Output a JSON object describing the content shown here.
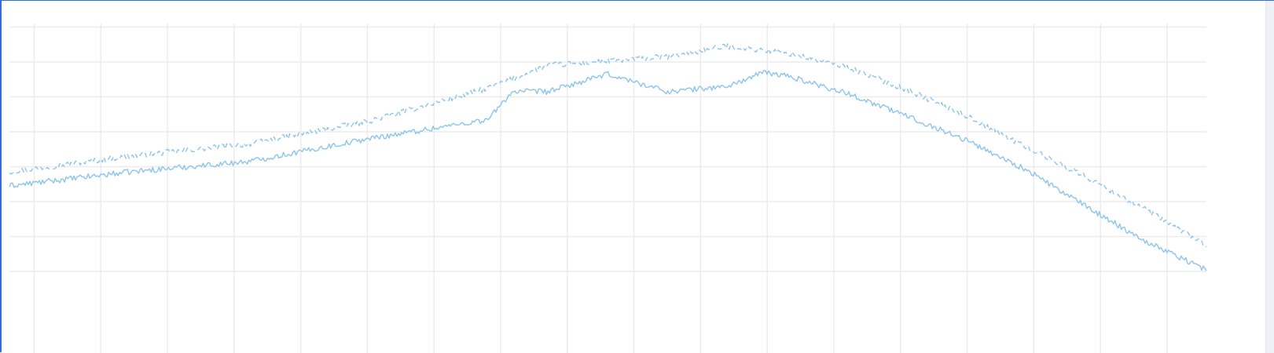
{
  "colors": {
    "series": "#8cc4ec",
    "grid": "#ececec",
    "frame": "#2f6fd6",
    "background": "#ffffff"
  },
  "chart_data": {
    "type": "line",
    "title": "",
    "xlabel": "",
    "ylabel": "",
    "grid": true,
    "legend": "none",
    "x_range": [
      0,
      100
    ],
    "y_range": [
      0,
      8
    ],
    "x_gridlines": [
      2.07,
      7.63,
      13.2,
      18.77,
      24.34,
      29.9,
      35.47,
      41.04,
      46.61,
      52.17,
      57.74,
      63.31,
      68.88,
      74.44,
      80.01,
      85.58,
      91.15,
      96.71
    ],
    "y_gridlines": [
      0.9,
      1.9,
      2.9,
      3.9,
      4.9,
      5.9,
      6.9,
      7.9
    ],
    "series": [
      {
        "style": "dashed",
        "points": [
          [
            0,
            3.75
          ],
          [
            10,
            4.2
          ],
          [
            20,
            4.55
          ],
          [
            30,
            5.2
          ],
          [
            40,
            6.15
          ],
          [
            45,
            6.8
          ],
          [
            50,
            6.92
          ],
          [
            55,
            7.05
          ],
          [
            60,
            7.35
          ],
          [
            65,
            7.15
          ],
          [
            70,
            6.75
          ],
          [
            75,
            6.1
          ],
          [
            80,
            5.35
          ],
          [
            85,
            4.45
          ],
          [
            90,
            3.6
          ],
          [
            95,
            2.65
          ],
          [
            100,
            1.65
          ]
        ]
      },
      {
        "style": "solid",
        "points": [
          [
            0,
            3.35
          ],
          [
            10,
            3.75
          ],
          [
            20,
            4.05
          ],
          [
            30,
            4.7
          ],
          [
            40,
            5.25
          ],
          [
            42,
            6.05
          ],
          [
            45,
            6.05
          ],
          [
            50,
            6.55
          ],
          [
            55,
            6.05
          ],
          [
            60,
            6.2
          ],
          [
            63,
            6.6
          ],
          [
            65,
            6.5
          ],
          [
            70,
            6.0
          ],
          [
            75,
            5.35
          ],
          [
            80,
            4.65
          ],
          [
            85,
            3.8
          ],
          [
            90,
            2.75
          ],
          [
            95,
            1.75
          ],
          [
            100,
            0.95
          ]
        ]
      }
    ]
  }
}
